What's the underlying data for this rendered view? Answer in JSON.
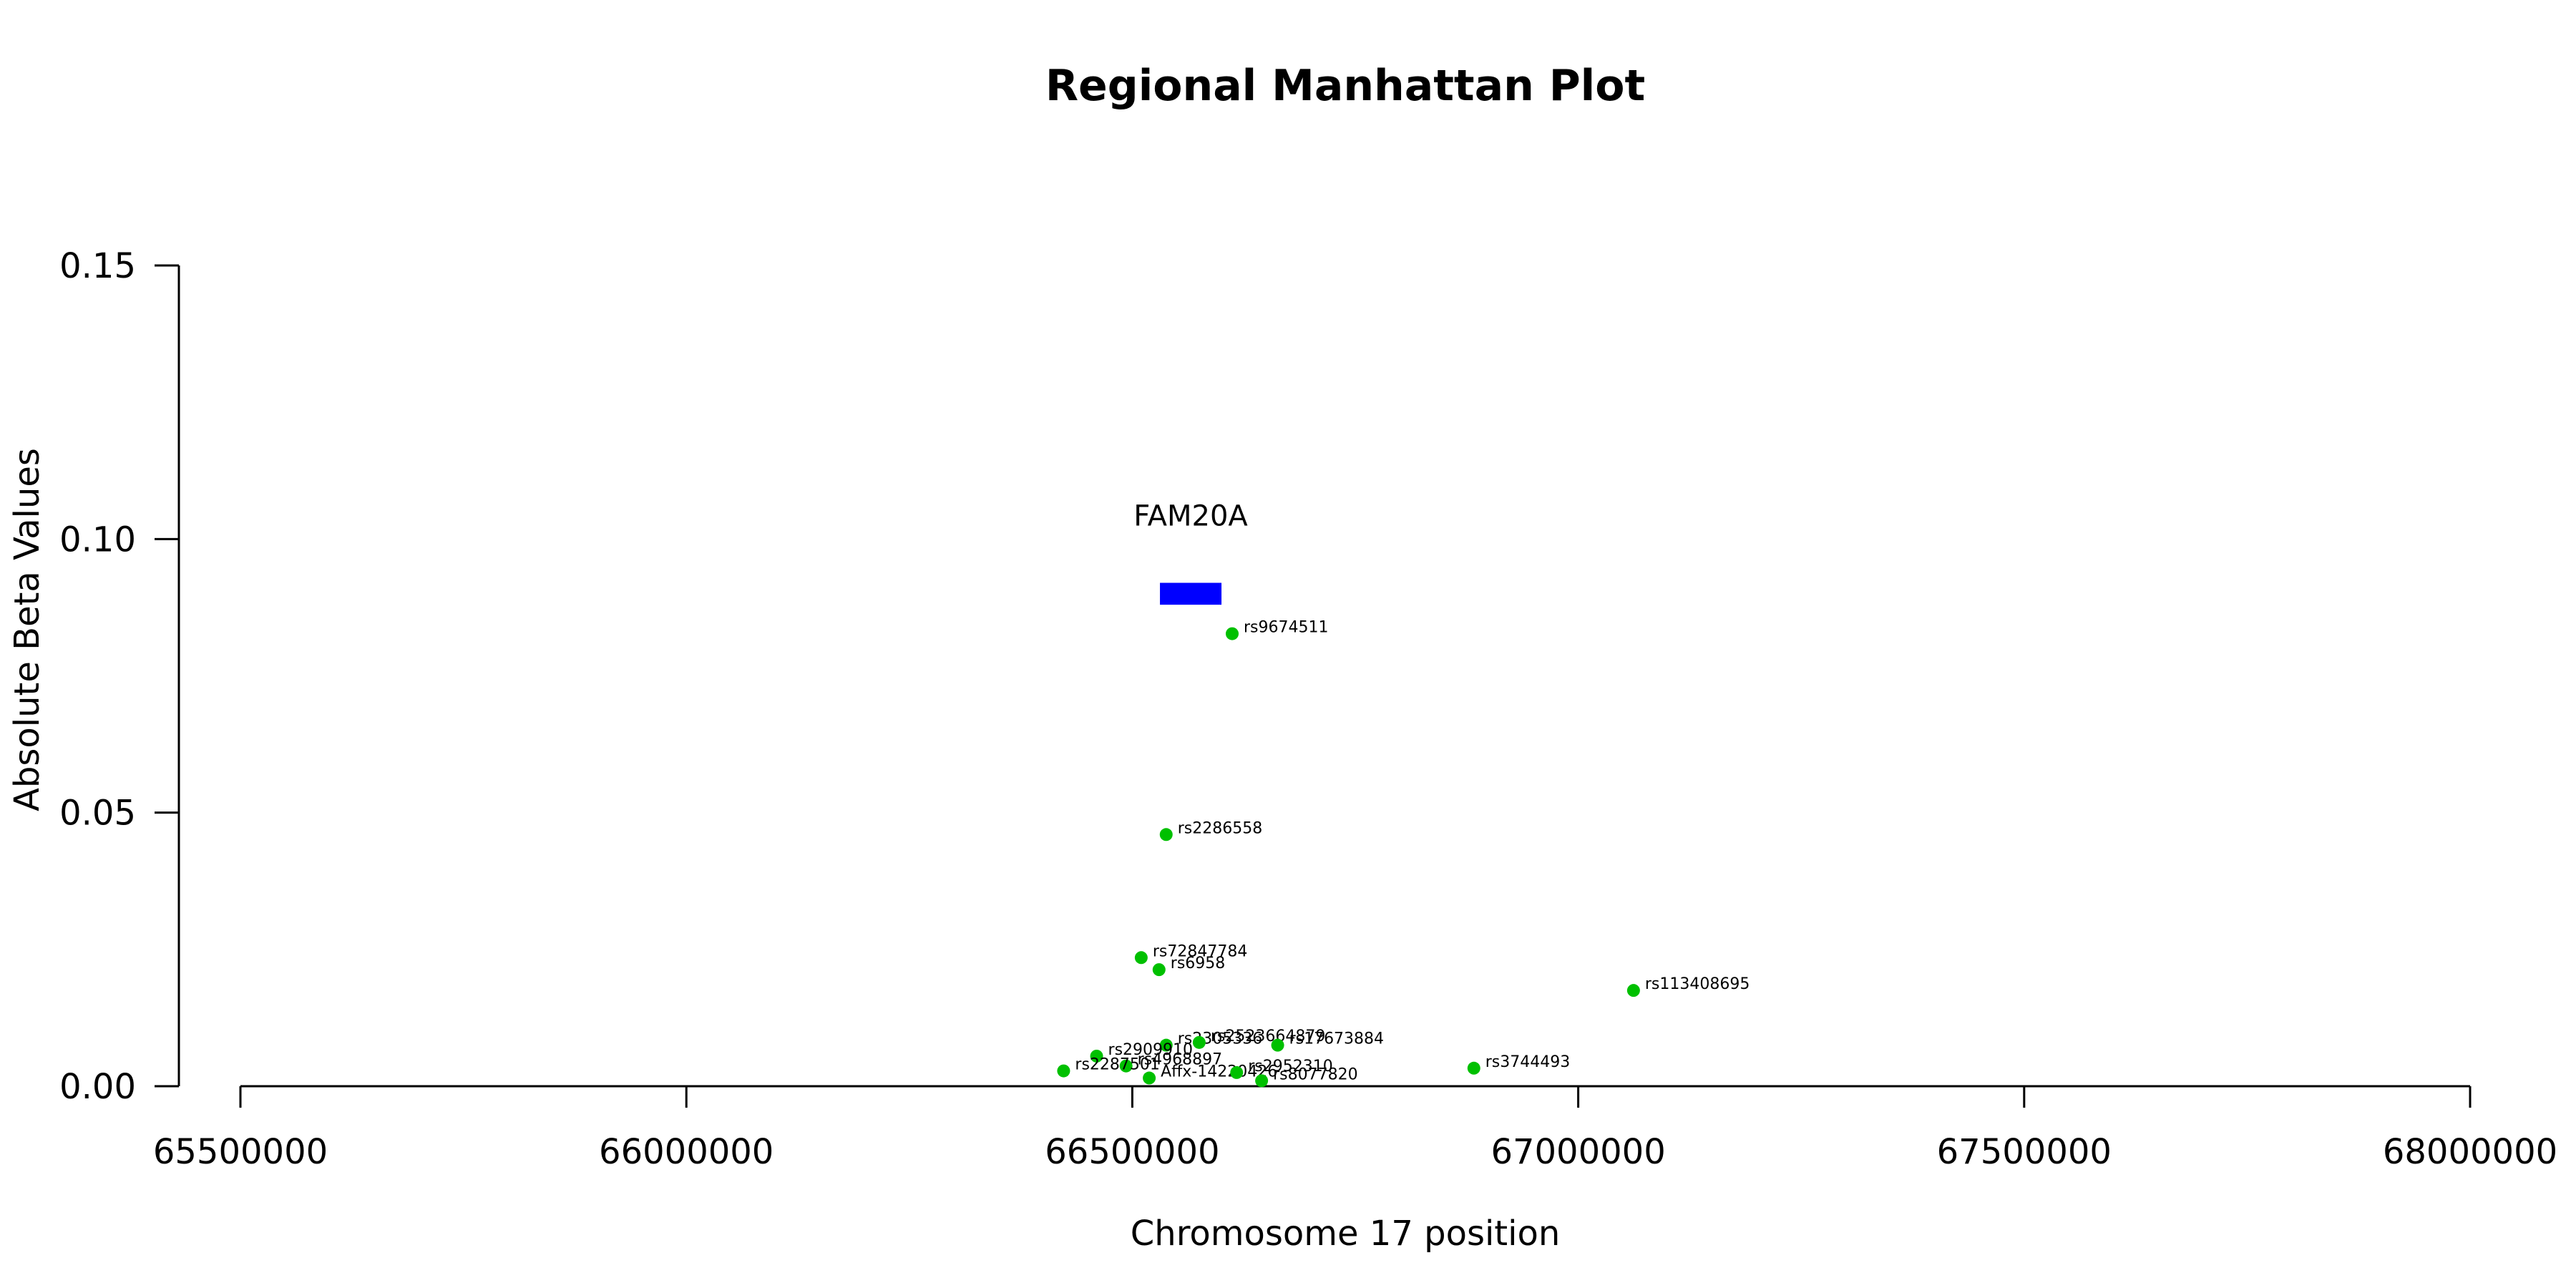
{
  "chart_data": {
    "type": "scatter",
    "title": "Regional Manhattan Plot",
    "xlabel": "Chromosome 17 position",
    "ylabel": "Absolute Beta Values",
    "xlim": [
      65500000,
      68000000
    ],
    "ylim": [
      0,
      0.15
    ],
    "x_ticks": [
      65500000,
      66000000,
      66500000,
      67000000,
      67500000,
      68000000
    ],
    "x_tick_labels": [
      "65500000",
      "66000000",
      "66500000",
      "67000000",
      "67500000",
      "68000000"
    ],
    "y_ticks": [
      0,
      0.05,
      0.1,
      0.15
    ],
    "y_tick_labels": [
      "0.00",
      "0.05",
      "0.10",
      "0.15"
    ],
    "grid": false,
    "point_color": "#00c000",
    "points": [
      {
        "label": "rs9674511",
        "x": 66612000,
        "y": 0.0827
      },
      {
        "label": "rs2286558",
        "x": 66538000,
        "y": 0.046
      },
      {
        "label": "rs72847784",
        "x": 66510000,
        "y": 0.0235
      },
      {
        "label": "rs6958",
        "x": 66530000,
        "y": 0.0213
      },
      {
        "label": "rs113408695",
        "x": 67062000,
        "y": 0.0175
      },
      {
        "label": "rs2305336",
        "x": 66538000,
        "y": 0.0075
      },
      {
        "label": "rs2523664879",
        "x": 66575000,
        "y": 0.008
      },
      {
        "label": "rs17673884",
        "x": 66663000,
        "y": 0.0075
      },
      {
        "label": "rs2909910",
        "x": 66460000,
        "y": 0.0055
      },
      {
        "label": "rs4968897",
        "x": 66493000,
        "y": 0.0037
      },
      {
        "label": "rs2287501",
        "x": 66423000,
        "y": 0.0028
      },
      {
        "label": "Affx-14220426",
        "x": 66519000,
        "y": 0.0015
      },
      {
        "label": "rs2952310",
        "x": 66617000,
        "y": 0.0025
      },
      {
        "label": "rs8077820",
        "x": 66645000,
        "y": 0.001
      },
      {
        "label": "rs3744493",
        "x": 66883000,
        "y": 0.0033
      }
    ],
    "genes": [
      {
        "name": "FAM20A",
        "start": 66531000,
        "end": 66600000,
        "y_bottom": 0.088,
        "y_top": 0.092,
        "color": "#0000ff"
      }
    ]
  }
}
